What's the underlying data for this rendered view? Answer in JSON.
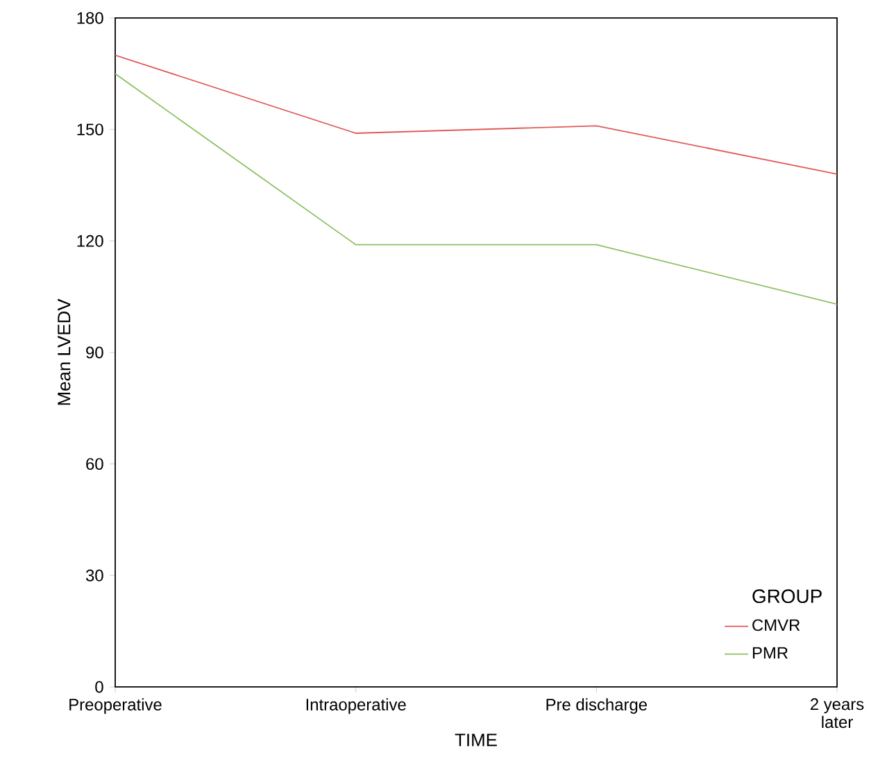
{
  "chart_data": {
    "type": "line",
    "xlabel": "TIME",
    "ylabel": "Mean LVEDV",
    "legend_title": "GROUP",
    "legend": "bottom right",
    "categories": [
      "Preoperative",
      "Intraoperative",
      "Pre discharge",
      "2 years later"
    ],
    "ylim": [
      0,
      180
    ],
    "yticks": [
      0,
      30,
      60,
      90,
      120,
      150,
      180
    ],
    "grid": false,
    "marker": "none",
    "line_style": "solid",
    "series": [
      {
        "name": "CMVR",
        "color": "#e05a5a",
        "values": [
          170,
          149,
          151,
          138
        ]
      },
      {
        "name": "PMR",
        "color": "#8cc063",
        "values": [
          165,
          119,
          119,
          103
        ]
      }
    ]
  }
}
